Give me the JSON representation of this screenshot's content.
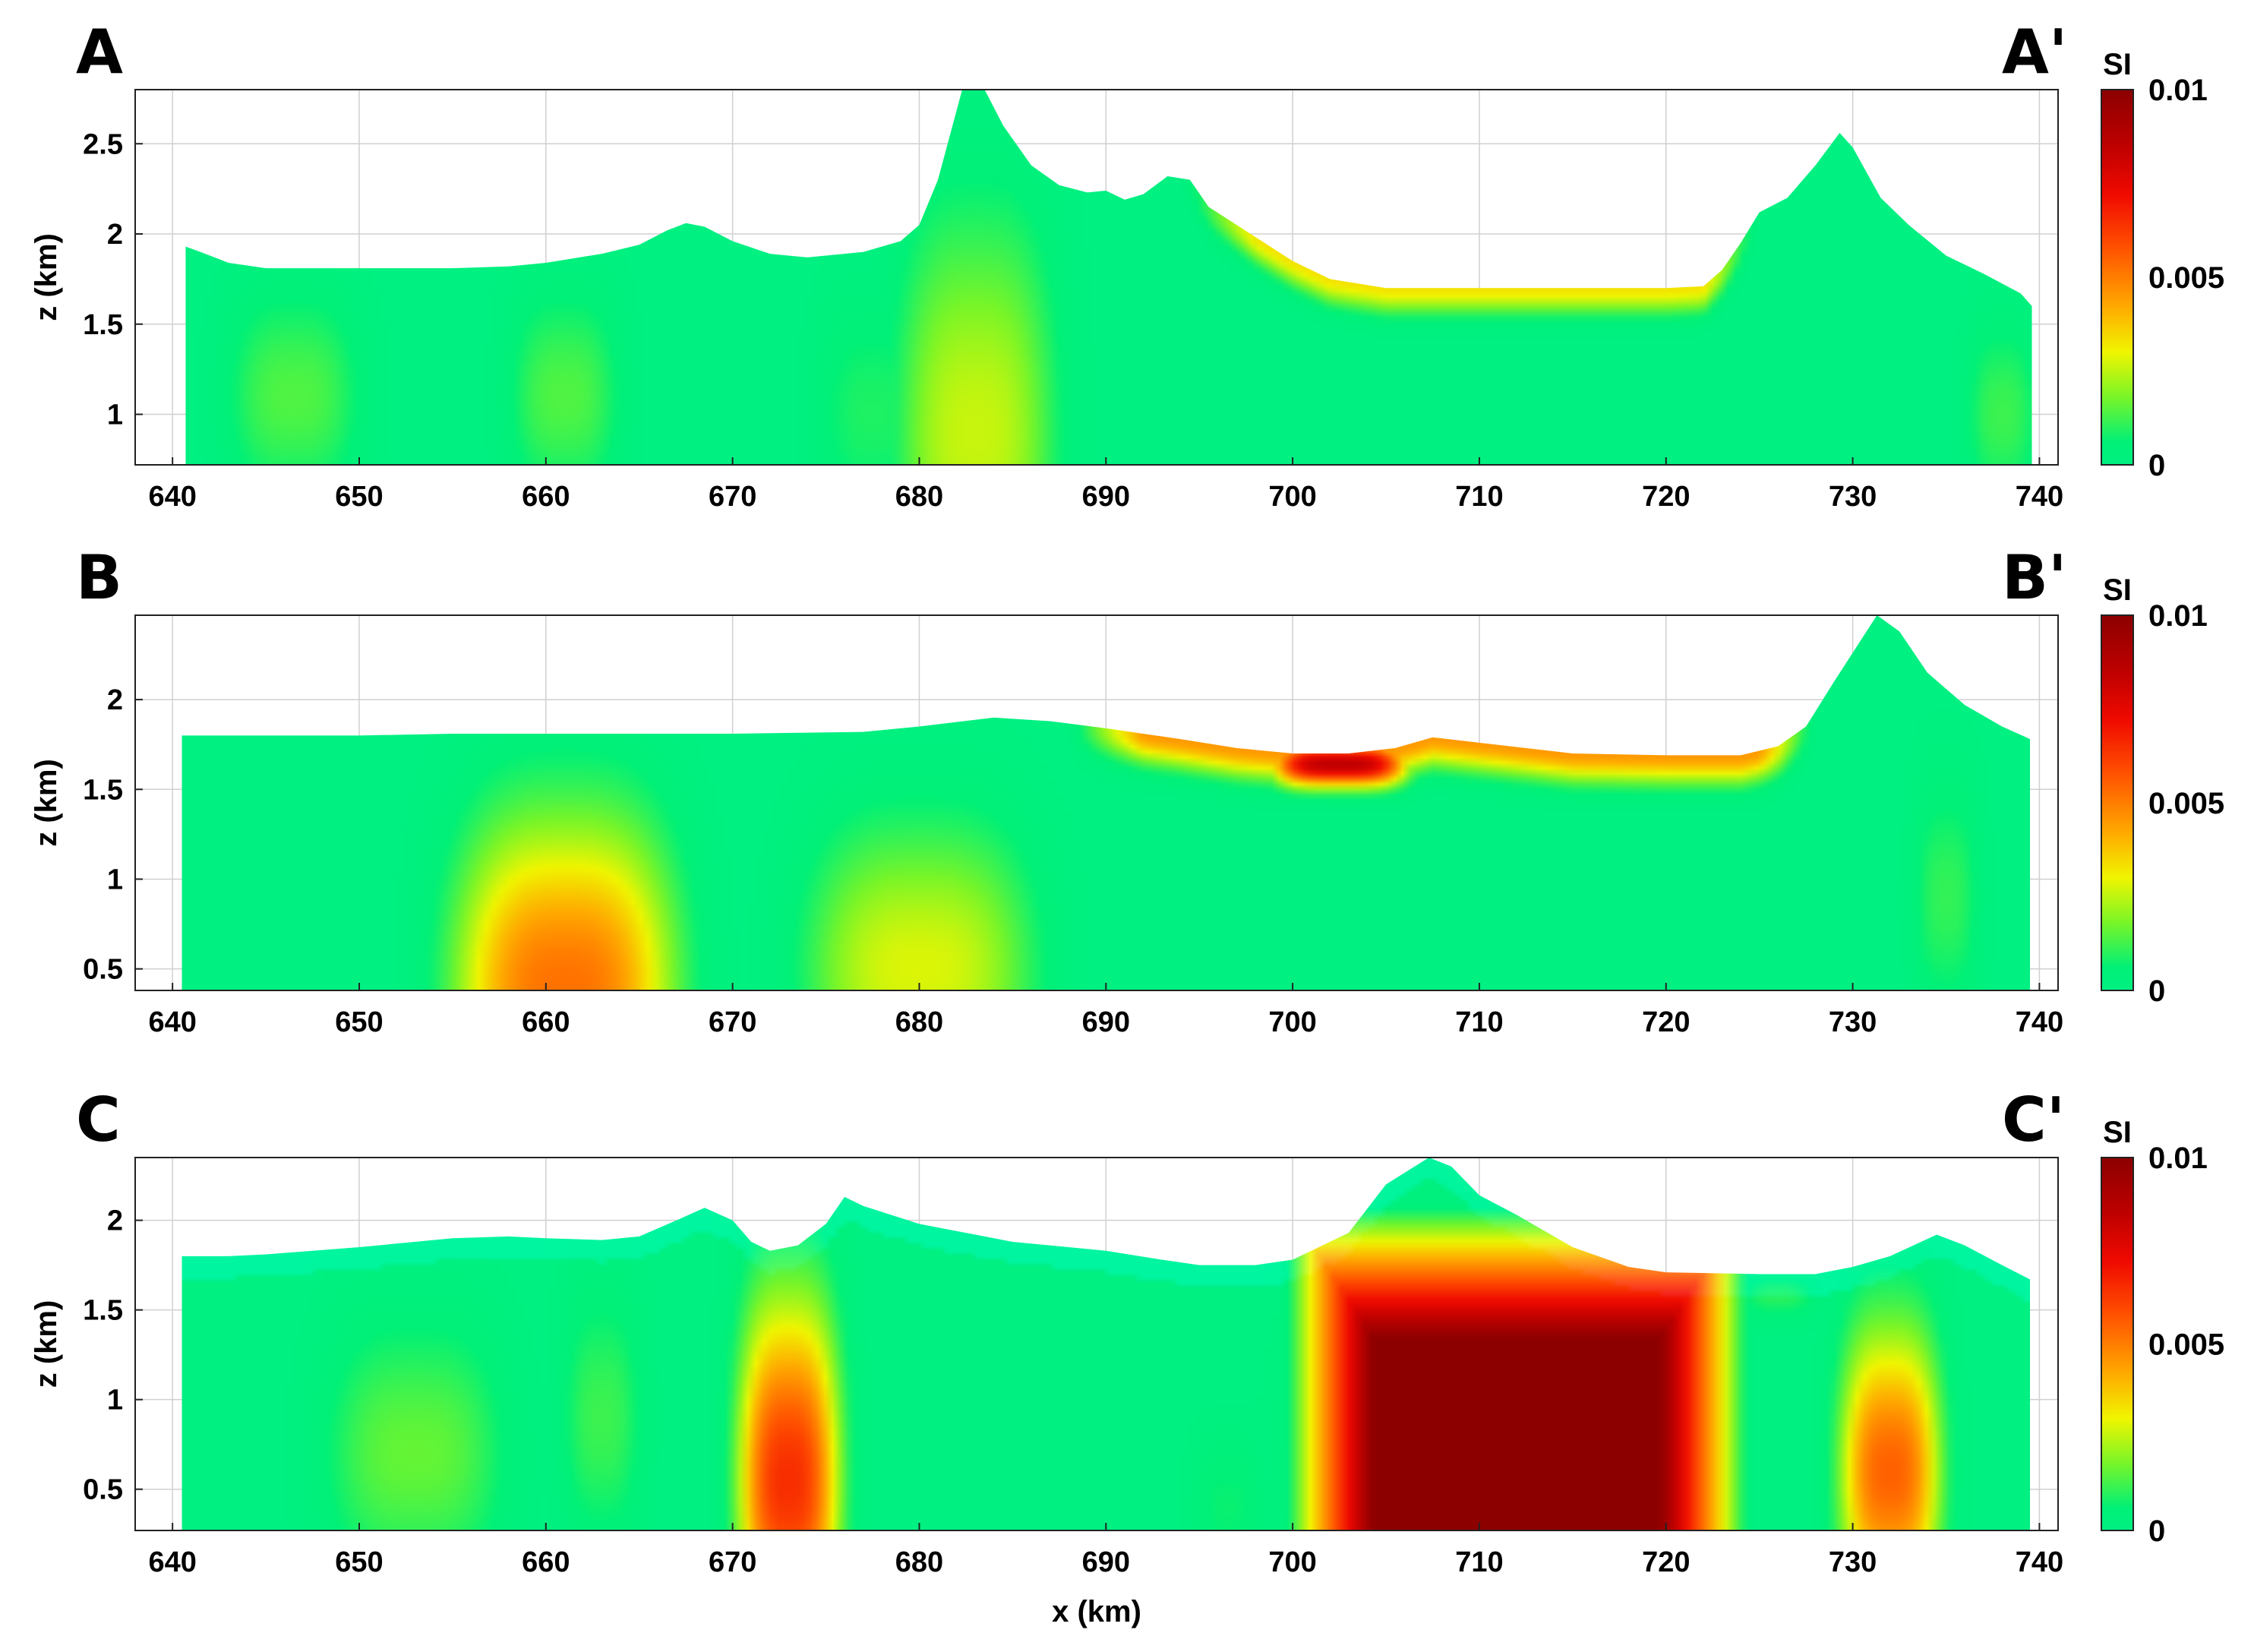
{
  "chart_data": [
    {
      "type": "heatmap",
      "panel_label_left": "A",
      "panel_label_right": "A'",
      "ylabel": "z (km)",
      "xlabel": "",
      "xlim": [
        638,
        741
      ],
      "ylim": [
        0.72,
        2.8
      ],
      "xticks": [
        "640",
        "650",
        "660",
        "670",
        "680",
        "690",
        "700",
        "710",
        "720",
        "730",
        "740"
      ],
      "yticks": [
        "1",
        "1.5",
        "2",
        "2.5"
      ],
      "colorbar": {
        "title": "SI",
        "ticks": [
          "0.01",
          "0.005",
          "0"
        ],
        "range": [
          0,
          0.01
        ]
      },
      "topography": [
        [
          640.7,
          1.93
        ],
        [
          641.5,
          1.9
        ],
        [
          643,
          1.84
        ],
        [
          645,
          1.81
        ],
        [
          650,
          1.81
        ],
        [
          655,
          1.81
        ],
        [
          658,
          1.82
        ],
        [
          660,
          1.84
        ],
        [
          663,
          1.89
        ],
        [
          665,
          1.94
        ],
        [
          666.5,
          2.02
        ],
        [
          667.5,
          2.06
        ],
        [
          668.5,
          2.04
        ],
        [
          670,
          1.96
        ],
        [
          672,
          1.89
        ],
        [
          674,
          1.87
        ],
        [
          677,
          1.9
        ],
        [
          679,
          1.96
        ],
        [
          680,
          2.05
        ],
        [
          681,
          2.3
        ],
        [
          682.3,
          2.8
        ],
        [
          683.5,
          2.8
        ],
        [
          684.5,
          2.6
        ],
        [
          686,
          2.38
        ],
        [
          687.5,
          2.27
        ],
        [
          689,
          2.23
        ],
        [
          690,
          2.24
        ],
        [
          691,
          2.19
        ],
        [
          692,
          2.22
        ],
        [
          693.3,
          2.32
        ],
        [
          694.5,
          2.3
        ],
        [
          695.5,
          2.15
        ],
        [
          697,
          2.05
        ],
        [
          698.5,
          1.95
        ],
        [
          700,
          1.85
        ],
        [
          702,
          1.75
        ],
        [
          705,
          1.7
        ],
        [
          710,
          1.7
        ],
        [
          715,
          1.7
        ],
        [
          720,
          1.7
        ],
        [
          722,
          1.71
        ],
        [
          723,
          1.8
        ],
        [
          724,
          1.95
        ],
        [
          725,
          2.12
        ],
        [
          726.5,
          2.2
        ],
        [
          728,
          2.38
        ],
        [
          729.3,
          2.56
        ],
        [
          730,
          2.48
        ],
        [
          731.5,
          2.2
        ],
        [
          733,
          2.05
        ],
        [
          735,
          1.88
        ],
        [
          737,
          1.78
        ],
        [
          739,
          1.67
        ],
        [
          739.6,
          1.6
        ]
      ],
      "anomalies": [
        {
          "x": 646.5,
          "z": 1.1,
          "sx": 3.0,
          "sz": 0.45,
          "si": 0.0014
        },
        {
          "x": 661.0,
          "z": 1.1,
          "sx": 2.5,
          "sz": 0.45,
          "si": 0.0014
        },
        {
          "x": 683.0,
          "z": 0.9,
          "sx": 3.5,
          "sz": 0.9,
          "si": 0.0026
        },
        {
          "x": 677.5,
          "z": 1.0,
          "sx": 2.5,
          "sz": 0.5,
          "si": 0.0009
        },
        {
          "x": 738.0,
          "z": 1.0,
          "sx": 1.6,
          "sz": 0.4,
          "si": 0.0012
        }
      ],
      "shallow_band": {
        "x_from": 694,
        "x_to": 725,
        "si": 0.0033,
        "thickness_km": 0.15
      }
    },
    {
      "type": "heatmap",
      "panel_label_left": "B",
      "panel_label_right": "B'",
      "ylabel": "z (km)",
      "xlabel": "",
      "xlim": [
        638,
        741
      ],
      "ylim": [
        0.38,
        2.47
      ],
      "xticks": [
        "640",
        "650",
        "660",
        "670",
        "680",
        "690",
        "700",
        "710",
        "720",
        "730",
        "740"
      ],
      "yticks": [
        "0.5",
        "1",
        "1.5",
        "2"
      ],
      "colorbar": {
        "title": "SI",
        "ticks": [
          "0.01",
          "0.005",
          "0"
        ],
        "range": [
          0,
          0.01
        ]
      },
      "topography": [
        [
          640.5,
          1.8
        ],
        [
          650,
          1.8
        ],
        [
          655,
          1.81
        ],
        [
          660,
          1.81
        ],
        [
          670,
          1.81
        ],
        [
          677,
          1.82
        ],
        [
          680,
          1.85
        ],
        [
          684,
          1.9
        ],
        [
          687,
          1.88
        ],
        [
          690,
          1.84
        ],
        [
          694,
          1.78
        ],
        [
          697,
          1.73
        ],
        [
          700,
          1.7
        ],
        [
          703,
          1.7
        ],
        [
          705.5,
          1.73
        ],
        [
          707.5,
          1.79
        ],
        [
          710,
          1.76
        ],
        [
          715,
          1.7
        ],
        [
          720,
          1.69
        ],
        [
          724,
          1.69
        ],
        [
          726,
          1.74
        ],
        [
          727.5,
          1.85
        ],
        [
          729,
          2.1
        ],
        [
          731.3,
          2.47
        ],
        [
          732.5,
          2.38
        ],
        [
          734,
          2.15
        ],
        [
          736,
          1.97
        ],
        [
          738,
          1.85
        ],
        [
          739.5,
          1.78
        ]
      ],
      "anomalies": [
        {
          "x": 661.0,
          "z": 0.4,
          "sx": 4.8,
          "sz": 0.7,
          "si": 0.0052
        },
        {
          "x": 680.0,
          "z": 0.5,
          "sx": 5.0,
          "sz": 0.6,
          "si": 0.0028
        },
        {
          "x": 735.0,
          "z": 0.9,
          "sx": 1.5,
          "sz": 0.5,
          "si": 0.0011
        }
      ],
      "shallow_band": {
        "x_from": 688,
        "x_to": 728,
        "si": 0.0045,
        "thickness_km": 0.17
      },
      "hotspot": {
        "x": 702.5,
        "z": 1.64,
        "sx": 3.2,
        "sz": 0.1,
        "si": 0.0085
      }
    },
    {
      "type": "heatmap",
      "panel_label_left": "C",
      "panel_label_right": "C'",
      "ylabel": "z (km)",
      "xlabel": "x (km)",
      "xlim": [
        638,
        741
      ],
      "ylim": [
        0.27,
        2.35
      ],
      "xticks": [
        "640",
        "650",
        "660",
        "670",
        "680",
        "690",
        "700",
        "710",
        "720",
        "730",
        "740"
      ],
      "yticks": [
        "0.5",
        "1",
        "1.5",
        "2"
      ],
      "colorbar": {
        "title": "SI",
        "ticks": [
          "0.01",
          "0.005",
          "0"
        ],
        "range": [
          0,
          0.01
        ]
      },
      "topography": [
        [
          640.5,
          1.8
        ],
        [
          643,
          1.8
        ],
        [
          645,
          1.81
        ],
        [
          650,
          1.85
        ],
        [
          655,
          1.9
        ],
        [
          658,
          1.91
        ],
        [
          660,
          1.9
        ],
        [
          663,
          1.89
        ],
        [
          665,
          1.91
        ],
        [
          667,
          2.0
        ],
        [
          668.5,
          2.07
        ],
        [
          670,
          2.0
        ],
        [
          671,
          1.88
        ],
        [
          672,
          1.83
        ],
        [
          673.5,
          1.86
        ],
        [
          675,
          1.98
        ],
        [
          676,
          2.13
        ],
        [
          677,
          2.08
        ],
        [
          680,
          1.98
        ],
        [
          685,
          1.88
        ],
        [
          690,
          1.83
        ],
        [
          693,
          1.78
        ],
        [
          695,
          1.75
        ],
        [
          698,
          1.75
        ],
        [
          700,
          1.78
        ],
        [
          703,
          1.93
        ],
        [
          705,
          2.2
        ],
        [
          707.3,
          2.35
        ],
        [
          708.5,
          2.3
        ],
        [
          710,
          2.14
        ],
        [
          712,
          2.03
        ],
        [
          715,
          1.85
        ],
        [
          718,
          1.74
        ],
        [
          720,
          1.71
        ],
        [
          725,
          1.7
        ],
        [
          728,
          1.7
        ],
        [
          730,
          1.74
        ],
        [
          732,
          1.8
        ],
        [
          734.5,
          1.92
        ],
        [
          736,
          1.86
        ],
        [
          738,
          1.75
        ],
        [
          739.5,
          1.67
        ]
      ],
      "anomalies": [
        {
          "x": 653.0,
          "z": 0.7,
          "sx": 4.0,
          "sz": 0.55,
          "si": 0.0016
        },
        {
          "x": 663.0,
          "z": 0.9,
          "sx": 1.8,
          "sz": 0.55,
          "si": 0.0012
        },
        {
          "x": 673.0,
          "z": 0.55,
          "sx": 2.2,
          "sz": 0.75,
          "si": 0.0065
        },
        {
          "x": 710.5,
          "z": 0.55,
          "sx": 6.2,
          "sz": 0.65,
          "si": 0.0098
        },
        {
          "x": 732.0,
          "z": 0.6,
          "sx": 2.2,
          "sz": 0.6,
          "si": 0.0055
        },
        {
          "x": 696.5,
          "z": 0.4,
          "sx": 1.6,
          "sz": 0.3,
          "si": 0.0007
        },
        {
          "x": 726.0,
          "z": 1.58,
          "sx": 1.8,
          "sz": 0.1,
          "si": 0.001
        }
      ],
      "deep_body": {
        "x_from": 703,
        "x_to": 721,
        "z_top": 1.2,
        "si": 0.01
      }
    }
  ]
}
